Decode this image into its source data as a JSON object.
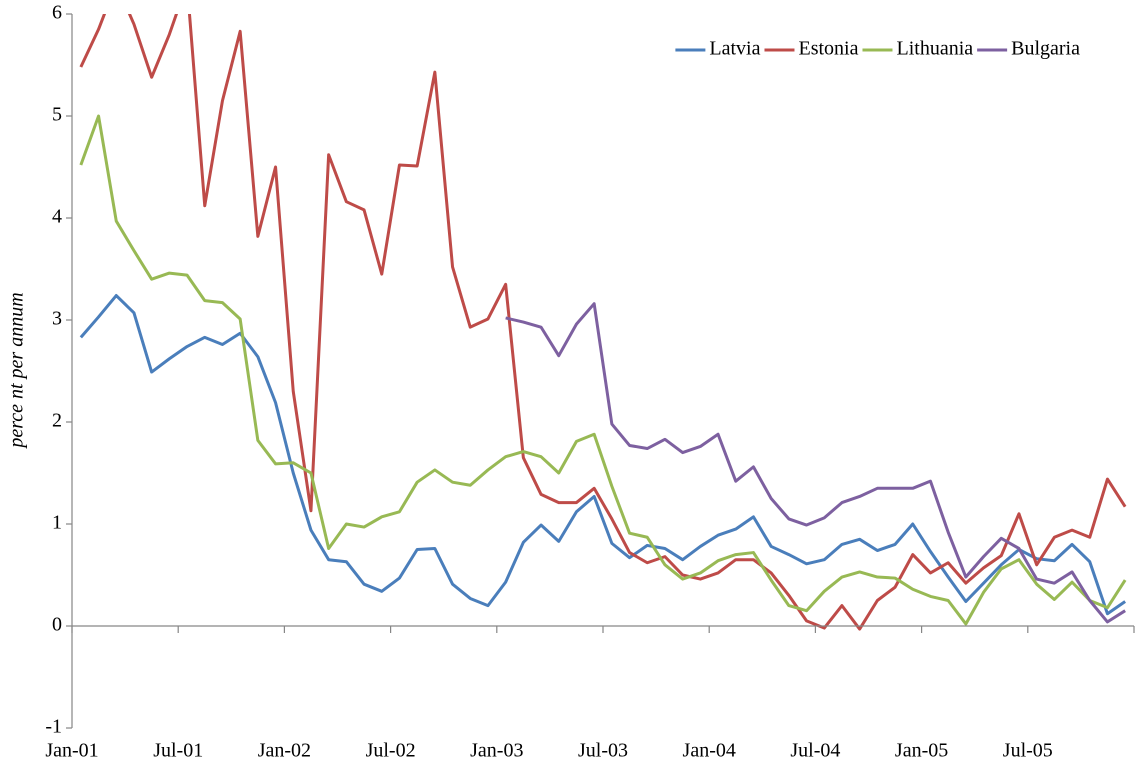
{
  "chart_data": {
    "type": "line",
    "y_label": "perce nt per annum",
    "categories": [
      "Jan-01",
      null,
      null,
      null,
      null,
      null,
      "Jul-01",
      null,
      null,
      null,
      null,
      null,
      "Jan-02",
      null,
      null,
      null,
      null,
      null,
      "Jul-02",
      null,
      null,
      null,
      null,
      null,
      "Jan-03",
      null,
      null,
      null,
      null,
      null,
      "Jul-03",
      null,
      null,
      null,
      null,
      null,
      "Jan-04",
      null,
      null,
      null,
      null,
      null,
      "Jul-04",
      null,
      null,
      null,
      null,
      null,
      "Jan-05",
      null,
      null,
      null,
      null,
      null,
      "Jul-05",
      null,
      null,
      null,
      null,
      null
    ],
    "ylim": [
      -1,
      6
    ],
    "yticks": [
      -1,
      0,
      1,
      2,
      3,
      4,
      5,
      6
    ],
    "legend": "top-right",
    "series": [
      {
        "name": "Latvia",
        "color": "#4a7ebb",
        "values": [
          2.83,
          3.03,
          3.24,
          3.07,
          2.49,
          2.62,
          2.74,
          2.83,
          2.76,
          2.87,
          2.64,
          2.19,
          1.5,
          0.94,
          0.65,
          0.63,
          0.41,
          0.34,
          0.47,
          0.75,
          0.76,
          0.41,
          0.27,
          0.2,
          0.43,
          0.82,
          0.99,
          0.83,
          1.12,
          1.27,
          0.81,
          0.67,
          0.79,
          0.76,
          0.65,
          0.78,
          0.89,
          0.95,
          1.07,
          0.78,
          0.7,
          0.61,
          0.65,
          0.8,
          0.85,
          0.74,
          0.8,
          1.0,
          0.73,
          0.48,
          0.24,
          0.42,
          0.6,
          0.75,
          0.66,
          0.64,
          0.8,
          0.63,
          0.12,
          0.24
        ]
      },
      {
        "name": "Estonia",
        "color": "#be4b48",
        "values": [
          5.48,
          5.85,
          6.3,
          5.9,
          5.38,
          5.8,
          6.3,
          4.12,
          5.15,
          5.83,
          3.82,
          4.5,
          2.3,
          1.13,
          4.62,
          4.16,
          4.08,
          3.45,
          4.52,
          4.51,
          5.43,
          3.52,
          2.93,
          3.01,
          3.35,
          1.65,
          1.29,
          1.21,
          1.21,
          1.35,
          1.05,
          0.72,
          0.62,
          0.68,
          0.5,
          0.46,
          0.52,
          0.65,
          0.65,
          0.52,
          0.3,
          0.05,
          -0.02,
          0.2,
          -0.03,
          0.25,
          0.38,
          0.7,
          0.52,
          0.62,
          0.42,
          0.57,
          0.69,
          1.1,
          0.6,
          0.87,
          0.94,
          0.87,
          1.44,
          1.17
        ]
      },
      {
        "name": "Lithuania",
        "color": "#98b954",
        "values": [
          4.52,
          5.0,
          3.97,
          3.68,
          3.4,
          3.46,
          3.44,
          3.19,
          3.17,
          3.01,
          1.82,
          1.59,
          1.6,
          1.5,
          0.76,
          1.0,
          0.97,
          1.07,
          1.12,
          1.41,
          1.53,
          1.41,
          1.38,
          1.53,
          1.66,
          1.71,
          1.66,
          1.5,
          1.81,
          1.88,
          1.37,
          0.91,
          0.87,
          0.6,
          0.46,
          0.52,
          0.64,
          0.7,
          0.72,
          0.45,
          0.2,
          0.15,
          0.34,
          0.48,
          0.53,
          0.48,
          0.47,
          0.36,
          0.29,
          0.25,
          0.02,
          0.33,
          0.56,
          0.65,
          0.41,
          0.26,
          0.43,
          0.25,
          0.18,
          0.45
        ]
      },
      {
        "name": "Bulgaria",
        "color": "#7d60a0",
        "values": [
          null,
          null,
          null,
          null,
          null,
          null,
          null,
          null,
          null,
          null,
          null,
          null,
          null,
          null,
          null,
          null,
          null,
          null,
          null,
          null,
          null,
          null,
          null,
          null,
          3.02,
          2.98,
          2.93,
          2.65,
          2.96,
          3.16,
          1.98,
          1.77,
          1.74,
          1.83,
          1.7,
          1.76,
          1.88,
          1.42,
          1.56,
          1.25,
          1.05,
          0.99,
          1.06,
          1.21,
          1.27,
          1.35,
          1.35,
          1.35,
          1.42,
          0.92,
          0.48,
          0.68,
          0.86,
          0.76,
          0.46,
          0.42,
          0.53,
          0.25,
          0.04,
          0.15
        ]
      }
    ]
  }
}
